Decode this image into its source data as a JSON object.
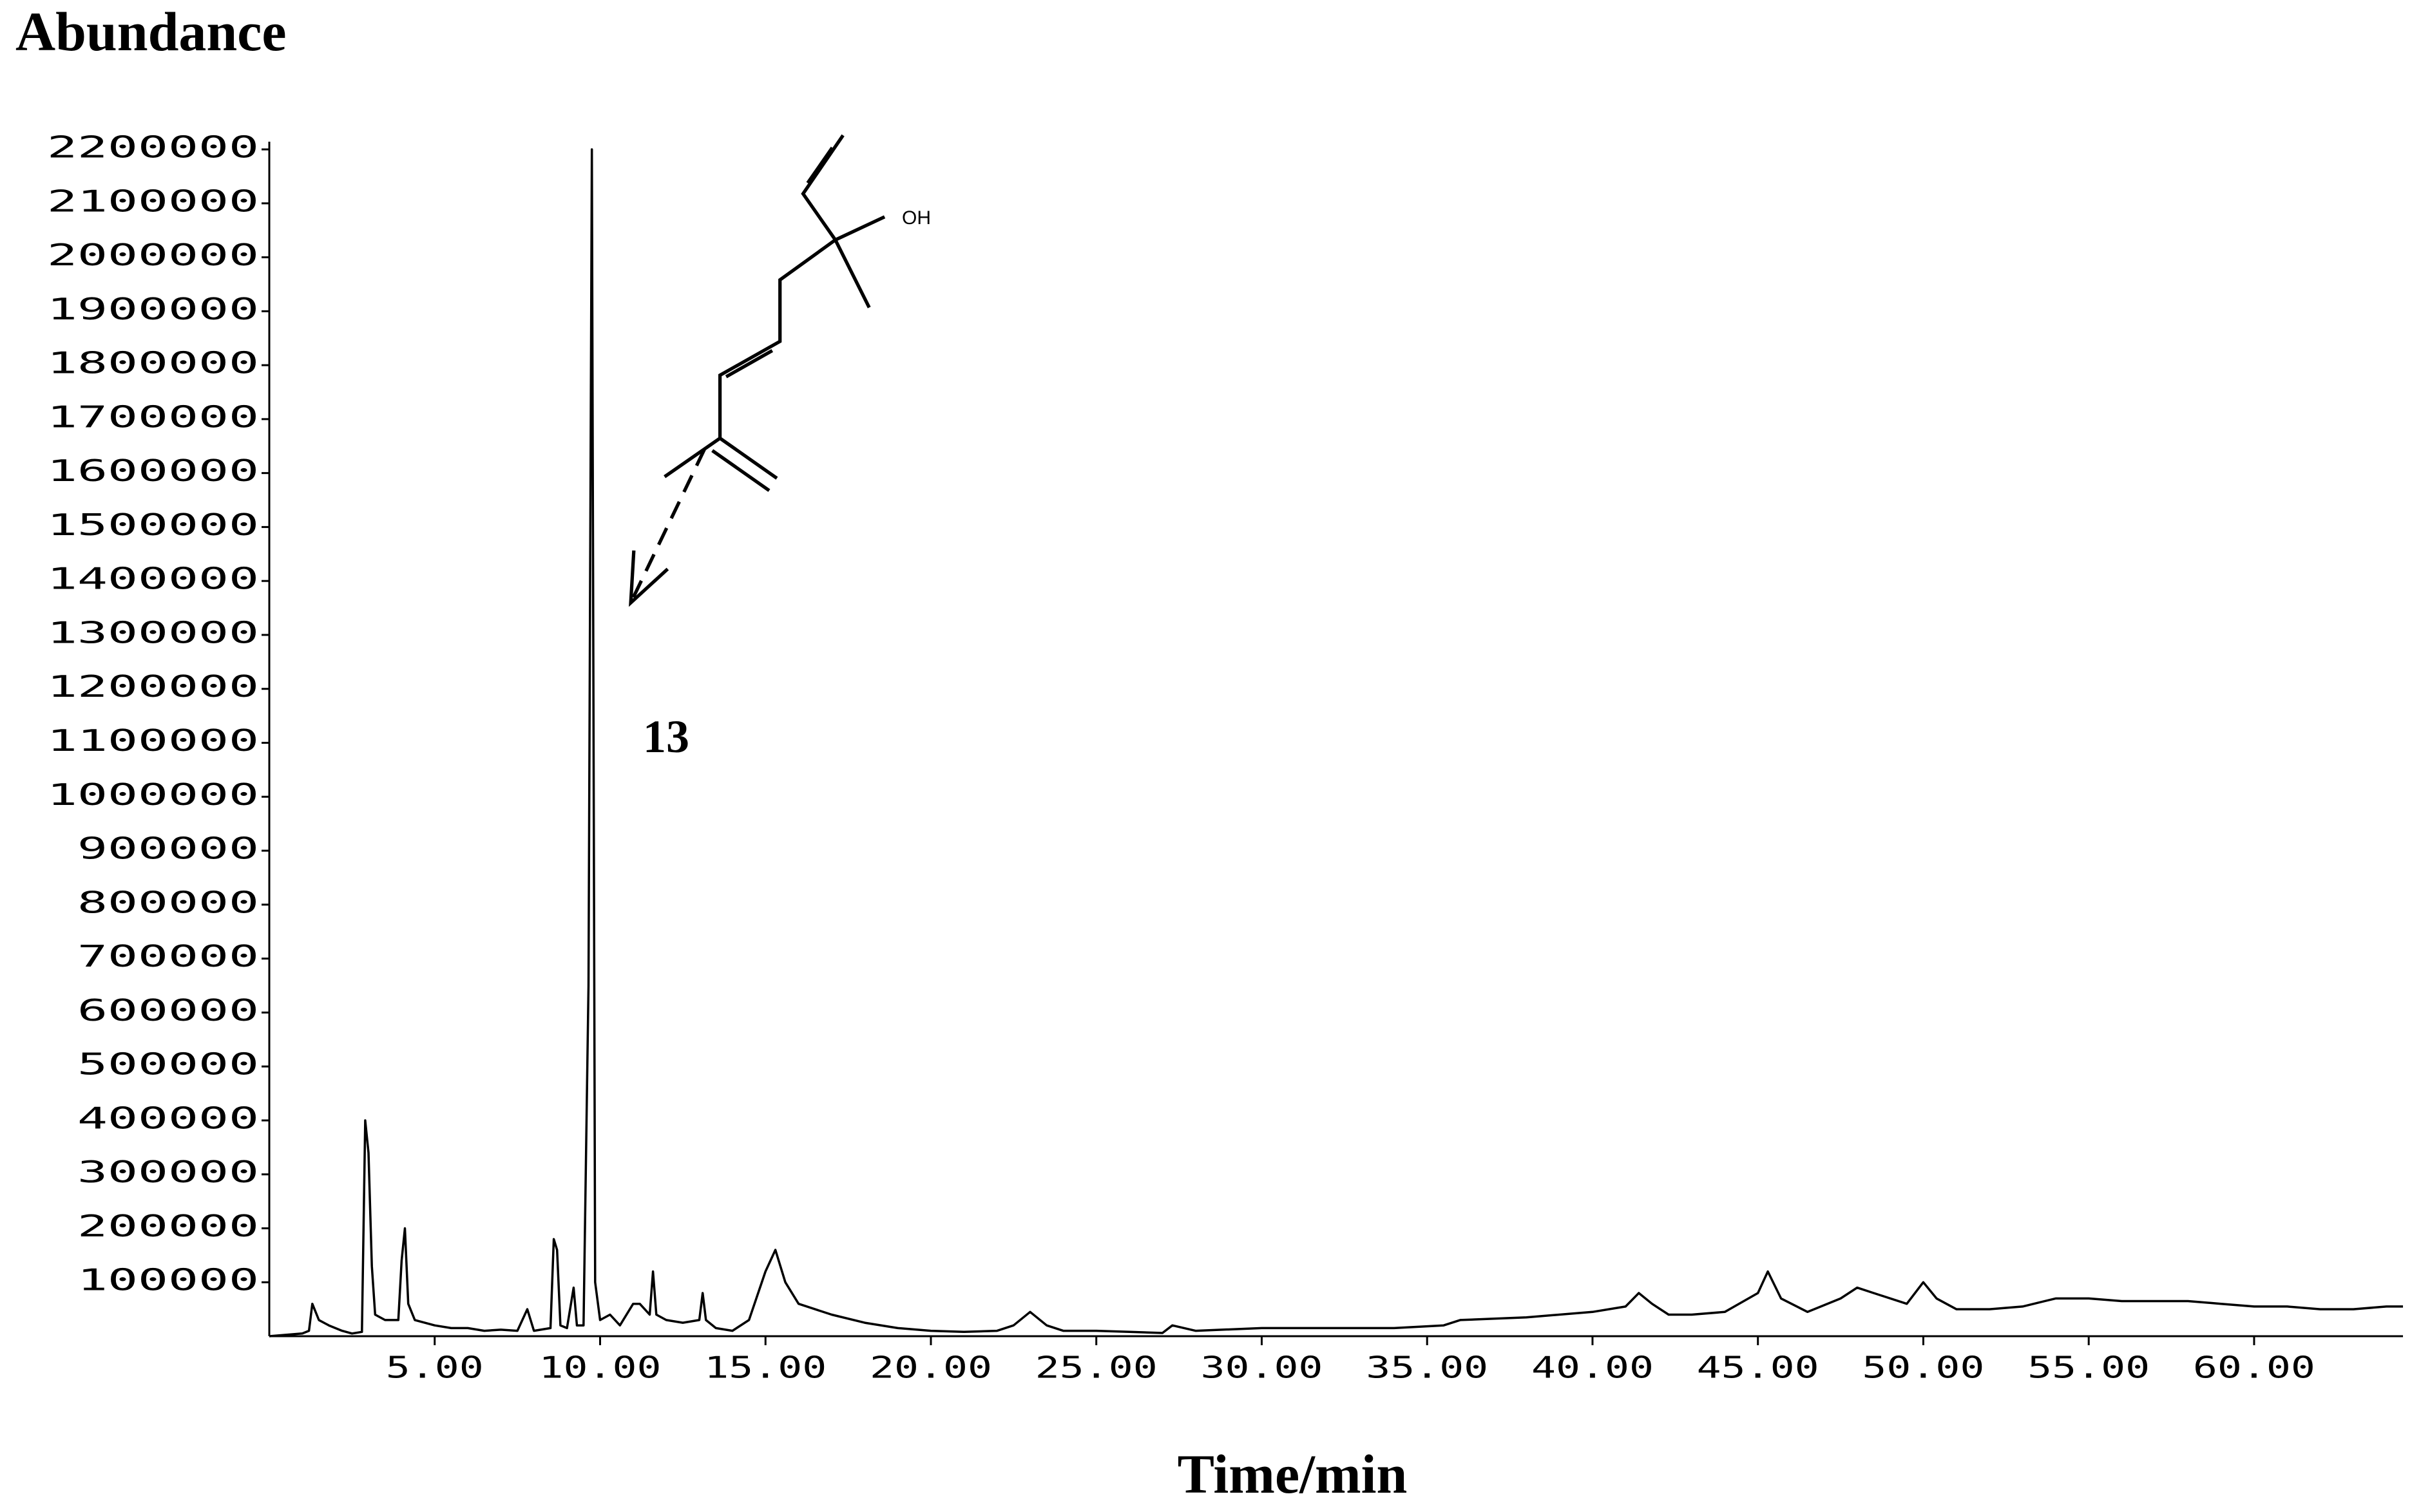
{
  "chart_data": {
    "type": "line",
    "color": "#000000",
    "ylabel": "Abundance",
    "xlabel": "Time/min",
    "annotations": [
      "13",
      "OH"
    ],
    "xlim": [
      0,
      64.5
    ],
    "ylim": [
      0,
      2200000
    ],
    "xticks": [
      {
        "value": 5,
        "label": "5.00"
      },
      {
        "value": 10,
        "label": "10.00"
      },
      {
        "value": 15,
        "label": "15.00"
      },
      {
        "value": 20,
        "label": "20.00"
      },
      {
        "value": 25,
        "label": "25.00"
      },
      {
        "value": 30,
        "label": "30.00"
      },
      {
        "value": 35,
        "label": "35.00"
      },
      {
        "value": 40,
        "label": "40.00"
      },
      {
        "value": 45,
        "label": "45.00"
      },
      {
        "value": 50,
        "label": "50.00"
      },
      {
        "value": 55,
        "label": "55.00"
      },
      {
        "value": 60,
        "label": "60.00"
      }
    ],
    "yticks": [
      100000,
      200000,
      300000,
      400000,
      500000,
      600000,
      700000,
      800000,
      900000,
      1000000,
      1100000,
      1200000,
      1300000,
      1400000,
      1500000,
      1600000,
      1700000,
      1800000,
      1900000,
      2000000,
      2100000,
      2200000
    ],
    "x": [
      0.0,
      1.0,
      1.2,
      1.3,
      1.5,
      1.8,
      2.2,
      2.5,
      2.8,
      2.9,
      3.0,
      3.1,
      3.2,
      3.5,
      3.9,
      4.0,
      4.1,
      4.2,
      4.4,
      5.0,
      5.5,
      6.0,
      6.5,
      7.0,
      7.5,
      7.8,
      8.0,
      8.5,
      8.6,
      8.7,
      8.8,
      9.0,
      9.2,
      9.3,
      9.5,
      9.65,
      9.75,
      9.85,
      10.0,
      10.3,
      10.6,
      11.0,
      11.2,
      11.5,
      11.6,
      11.7,
      12.0,
      12.5,
      13.0,
      13.1,
      13.2,
      13.5,
      14.0,
      14.5,
      15.0,
      15.3,
      15.6,
      16.0,
      17.0,
      18.0,
      19.0,
      20.0,
      21.0,
      22.0,
      22.5,
      23.0,
      23.5,
      24.0,
      25.0,
      26.0,
      27.0,
      27.3,
      28.0,
      30.0,
      32.0,
      34.0,
      35.5,
      36.0,
      38.0,
      40.0,
      41.0,
      41.4,
      41.8,
      42.3,
      43.0,
      44.0,
      45.0,
      45.3,
      45.7,
      46.5,
      47.5,
      48.0,
      48.5,
      49.5,
      50.0,
      50.4,
      51.0,
      52.0,
      53.0,
      54.0,
      55.0,
      56.0,
      57.0,
      58.0,
      59.0,
      60.0,
      61.0,
      62.0,
      63.0,
      64.0,
      64.5
    ],
    "values": [
      0,
      5000,
      10000,
      60000,
      30000,
      20000,
      10000,
      5000,
      8000,
      400000,
      340000,
      130000,
      40000,
      30000,
      30000,
      140000,
      200000,
      60000,
      30000,
      20000,
      15000,
      15000,
      10000,
      12000,
      10000,
      50000,
      10000,
      15000,
      180000,
      160000,
      20000,
      15000,
      90000,
      20000,
      20000,
      650000,
      2200000,
      100000,
      30000,
      40000,
      20000,
      60000,
      60000,
      40000,
      120000,
      40000,
      30000,
      25000,
      30000,
      80000,
      30000,
      15000,
      10000,
      30000,
      120000,
      160000,
      100000,
      60000,
      40000,
      25000,
      15000,
      10000,
      8000,
      10000,
      20000,
      45000,
      20000,
      10000,
      10000,
      8000,
      6000,
      20000,
      10000,
      15000,
      15000,
      15000,
      20000,
      30000,
      35000,
      45000,
      55000,
      80000,
      60000,
      40000,
      40000,
      45000,
      80000,
      120000,
      70000,
      45000,
      70000,
      90000,
      80000,
      60000,
      100000,
      70000,
      50000,
      50000,
      55000,
      70000,
      70000,
      65000,
      65000,
      65000,
      60000,
      55000,
      55000,
      50000,
      50000,
      55000,
      55000
    ]
  }
}
